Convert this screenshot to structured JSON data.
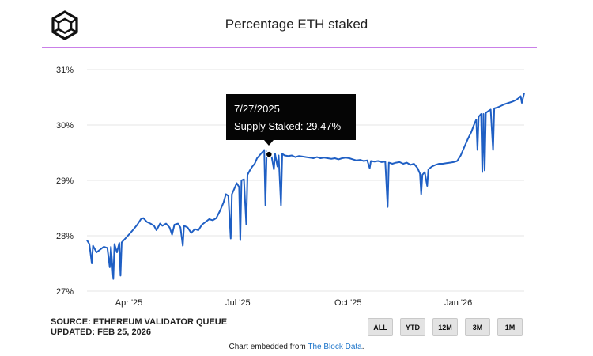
{
  "logo_icon": "the-block-cube-logo-icon",
  "title": "Percentage ETH staked",
  "colors": {
    "accent_rule": "#c97fe8",
    "line": "#1f5fc4",
    "grid": "#e6e6e6",
    "tooltip_bg": "#050505"
  },
  "source": {
    "line1": "SOURCE: ETHEREUM VALIDATOR QUEUE",
    "line2": "UPDATED: FEB 25, 2026"
  },
  "range_buttons": [
    "ALL",
    "YTD",
    "12M",
    "3M",
    "1M"
  ],
  "embed": {
    "prefix": "Chart embedded from ",
    "link_text": "The Block Data",
    "suffix": "."
  },
  "tooltip": {
    "date": "7/27/2025",
    "label": "Supply Staked: 29.47%"
  },
  "chart_data": {
    "type": "line",
    "title": "Percentage ETH staked",
    "xlabel": "",
    "ylabel": "",
    "y_unit": "%",
    "ylim": [
      27,
      31
    ],
    "yticks": [
      "27%",
      "28%",
      "29%",
      "30%",
      "31%"
    ],
    "xlim": [
      "2025-02-25",
      "2026-02-25"
    ],
    "xticks": [
      {
        "label": "Apr '25",
        "date": "2025-04-01"
      },
      {
        "label": "Jul '25",
        "date": "2025-07-01"
      },
      {
        "label": "Oct '25",
        "date": "2025-10-01"
      },
      {
        "label": "Jan '26",
        "date": "2026-01-01"
      }
    ],
    "grid": true,
    "legend": "none",
    "highlight": {
      "date": "2025-07-27",
      "value": 29.47
    },
    "series": [
      {
        "points": [
          [
            "2025-02-25",
            27.92
          ],
          [
            "2025-02-27",
            27.85
          ],
          [
            "2025-03-01",
            27.5
          ],
          [
            "2025-03-02",
            27.82
          ],
          [
            "2025-03-05",
            27.7
          ],
          [
            "2025-03-08",
            27.75
          ],
          [
            "2025-03-11",
            27.8
          ],
          [
            "2025-03-14",
            27.78
          ],
          [
            "2025-03-16",
            27.43
          ],
          [
            "2025-03-17",
            27.8
          ],
          [
            "2025-03-19",
            27.22
          ],
          [
            "2025-03-20",
            27.85
          ],
          [
            "2025-03-22",
            27.7
          ],
          [
            "2025-03-24",
            27.87
          ],
          [
            "2025-03-25",
            27.28
          ],
          [
            "2025-03-26",
            27.88
          ],
          [
            "2025-03-29",
            27.95
          ],
          [
            "2025-04-01",
            28.02
          ],
          [
            "2025-04-05",
            28.12
          ],
          [
            "2025-04-08",
            28.2
          ],
          [
            "2025-04-11",
            28.3
          ],
          [
            "2025-04-13",
            28.32
          ],
          [
            "2025-04-16",
            28.25
          ],
          [
            "2025-04-19",
            28.22
          ],
          [
            "2025-04-22",
            28.18
          ],
          [
            "2025-04-24",
            28.1
          ],
          [
            "2025-04-27",
            28.22
          ],
          [
            "2025-04-29",
            28.18
          ],
          [
            "2025-05-02",
            28.22
          ],
          [
            "2025-05-05",
            28.15
          ],
          [
            "2025-05-07",
            28.02
          ],
          [
            "2025-05-09",
            28.2
          ],
          [
            "2025-05-12",
            28.22
          ],
          [
            "2025-05-14",
            28.15
          ],
          [
            "2025-05-16",
            27.82
          ],
          [
            "2025-05-17",
            28.18
          ],
          [
            "2025-05-20",
            28.15
          ],
          [
            "2025-05-23",
            28.05
          ],
          [
            "2025-05-26",
            28.12
          ],
          [
            "2025-05-29",
            28.1
          ],
          [
            "2025-06-01",
            28.2
          ],
          [
            "2025-06-04",
            28.25
          ],
          [
            "2025-06-07",
            28.3
          ],
          [
            "2025-06-10",
            28.28
          ],
          [
            "2025-06-13",
            28.32
          ],
          [
            "2025-06-16",
            28.45
          ],
          [
            "2025-06-19",
            28.6
          ],
          [
            "2025-06-21",
            28.75
          ],
          [
            "2025-06-23",
            28.72
          ],
          [
            "2025-06-25",
            27.95
          ],
          [
            "2025-06-26",
            28.75
          ],
          [
            "2025-06-28",
            28.85
          ],
          [
            "2025-06-30",
            28.95
          ],
          [
            "2025-07-02",
            28.88
          ],
          [
            "2025-07-03",
            27.92
          ],
          [
            "2025-07-04",
            29.0
          ],
          [
            "2025-07-06",
            29.02
          ],
          [
            "2025-07-08",
            28.2
          ],
          [
            "2025-07-09",
            29.1
          ],
          [
            "2025-07-11",
            29.18
          ],
          [
            "2025-07-13",
            29.25
          ],
          [
            "2025-07-15",
            29.3
          ],
          [
            "2025-07-17",
            29.4
          ],
          [
            "2025-07-19",
            29.45
          ],
          [
            "2025-07-21",
            29.5
          ],
          [
            "2025-07-23",
            29.55
          ],
          [
            "2025-07-24",
            28.55
          ],
          [
            "2025-07-25",
            29.52
          ],
          [
            "2025-07-27",
            29.47
          ],
          [
            "2025-07-29",
            29.45
          ],
          [
            "2025-07-31",
            29.2
          ],
          [
            "2025-08-01",
            29.48
          ],
          [
            "2025-08-03",
            29.25
          ],
          [
            "2025-08-04",
            29.45
          ],
          [
            "2025-08-06",
            28.55
          ],
          [
            "2025-08-07",
            29.48
          ],
          [
            "2025-08-09",
            29.45
          ],
          [
            "2025-08-12",
            29.44
          ],
          [
            "2025-08-15",
            29.45
          ],
          [
            "2025-08-18",
            29.42
          ],
          [
            "2025-08-21",
            29.44
          ],
          [
            "2025-08-24",
            29.43
          ],
          [
            "2025-08-27",
            29.42
          ],
          [
            "2025-08-30",
            29.41
          ],
          [
            "2025-09-02",
            29.4
          ],
          [
            "2025-09-05",
            29.42
          ],
          [
            "2025-09-08",
            29.4
          ],
          [
            "2025-09-11",
            29.41
          ],
          [
            "2025-09-14",
            29.4
          ],
          [
            "2025-09-17",
            29.39
          ],
          [
            "2025-09-20",
            29.4
          ],
          [
            "2025-09-23",
            29.38
          ],
          [
            "2025-09-26",
            29.4
          ],
          [
            "2025-09-29",
            29.41
          ],
          [
            "2025-10-02",
            29.4
          ],
          [
            "2025-10-05",
            29.38
          ],
          [
            "2025-10-08",
            29.36
          ],
          [
            "2025-10-11",
            29.37
          ],
          [
            "2025-10-14",
            29.35
          ],
          [
            "2025-10-17",
            29.36
          ],
          [
            "2025-10-19",
            29.22
          ],
          [
            "2025-10-20",
            29.35
          ],
          [
            "2025-10-23",
            29.34
          ],
          [
            "2025-10-26",
            29.35
          ],
          [
            "2025-10-29",
            29.33
          ],
          [
            "2025-11-01",
            29.34
          ],
          [
            "2025-11-03",
            28.52
          ],
          [
            "2025-11-04",
            29.32
          ],
          [
            "2025-11-07",
            29.3
          ],
          [
            "2025-11-10",
            29.32
          ],
          [
            "2025-11-13",
            29.33
          ],
          [
            "2025-11-16",
            29.3
          ],
          [
            "2025-11-19",
            29.32
          ],
          [
            "2025-11-22",
            29.28
          ],
          [
            "2025-11-25",
            29.3
          ],
          [
            "2025-11-28",
            29.22
          ],
          [
            "2025-11-30",
            29.12
          ],
          [
            "2025-12-01",
            28.75
          ],
          [
            "2025-12-02",
            29.1
          ],
          [
            "2025-12-04",
            29.15
          ],
          [
            "2025-12-06",
            28.9
          ],
          [
            "2025-12-07",
            29.2
          ],
          [
            "2025-12-10",
            29.25
          ],
          [
            "2025-12-13",
            29.28
          ],
          [
            "2025-12-16",
            29.3
          ],
          [
            "2025-12-19",
            29.3
          ],
          [
            "2025-12-22",
            29.31
          ],
          [
            "2025-12-25",
            29.32
          ],
          [
            "2025-12-28",
            29.33
          ],
          [
            "2025-12-31",
            29.35
          ],
          [
            "2026-01-03",
            29.45
          ],
          [
            "2026-01-06",
            29.6
          ],
          [
            "2026-01-09",
            29.75
          ],
          [
            "2026-01-12",
            29.88
          ],
          [
            "2026-01-14",
            30.0
          ],
          [
            "2026-01-16",
            30.1
          ],
          [
            "2026-01-17",
            29.55
          ],
          [
            "2026-01-18",
            30.15
          ],
          [
            "2026-01-20",
            30.2
          ],
          [
            "2026-01-21",
            29.15
          ],
          [
            "2026-01-22",
            30.2
          ],
          [
            "2026-01-23",
            29.18
          ],
          [
            "2026-01-24",
            30.22
          ],
          [
            "2026-01-26",
            30.25
          ],
          [
            "2026-01-28",
            30.28
          ],
          [
            "2026-01-30",
            29.55
          ],
          [
            "2026-01-31",
            30.3
          ],
          [
            "2026-02-03",
            30.32
          ],
          [
            "2026-02-06",
            30.35
          ],
          [
            "2026-02-09",
            30.38
          ],
          [
            "2026-02-12",
            30.4
          ],
          [
            "2026-02-15",
            30.42
          ],
          [
            "2026-02-18",
            30.45
          ],
          [
            "2026-02-20",
            30.48
          ],
          [
            "2026-02-22",
            30.52
          ],
          [
            "2026-02-23",
            30.4
          ],
          [
            "2026-02-25",
            30.58
          ]
        ]
      }
    ]
  }
}
